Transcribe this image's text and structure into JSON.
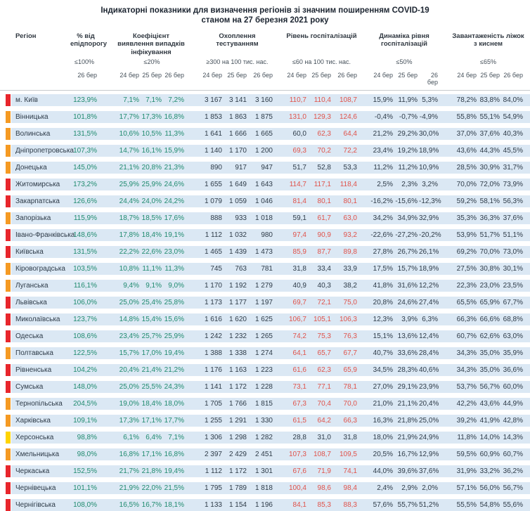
{
  "title_line1": "Індикаторні показники для визначення регіонів зі значним поширенням COVID-19",
  "title_line2": "станом на 27 березня 2021 року",
  "header": {
    "region_label": "Регіон",
    "groups": [
      {
        "name": "% від епідпорогу",
        "threshold": "≤100%",
        "dates": [
          "26 бер"
        ]
      },
      {
        "name": "Коефіцієнт виявлення випадків інфікування",
        "threshold": "≤20%",
        "dates": [
          "24 бер",
          "25 бер",
          "26 бер"
        ]
      },
      {
        "name": "Охоплення тестуванням",
        "threshold": "≥300 на 100 тис. нас.",
        "dates": [
          "24 бер",
          "25 бер",
          "26 бер"
        ]
      },
      {
        "name": "Рівень госпіталізацій",
        "threshold": "≤60 на 100 тис. нас.",
        "dates": [
          "24 бер",
          "25 бер",
          "26 бер"
        ]
      },
      {
        "name": "Динаміка рівня госпіталізацій",
        "threshold": "≤50%",
        "dates": [
          "24 бер",
          "25 бер",
          "26 бер"
        ]
      },
      {
        "name": "Завантаженість ліжок з киснем",
        "threshold": "≤65%",
        "dates": [
          "24 бер",
          "25 бер",
          "26 бер"
        ]
      }
    ]
  },
  "colors": {
    "row_bg": "#dbe8f4",
    "marker_red": "#e8262c",
    "marker_orange": "#f59a23",
    "marker_yellow": "#ffd400",
    "value_green": "#208b6f",
    "value_red": "#e0524a",
    "value_dark": "#2e3b48",
    "hosp_red_above": 60
  },
  "rows": [
    {
      "region": "м. Київ",
      "marker": "red",
      "epi": "123,9%",
      "detect": [
        "7,1%",
        "7,1%",
        "7,2%"
      ],
      "testing": [
        "3 167",
        "3 141",
        "3 160"
      ],
      "hosp": [
        "110,7",
        "110,4",
        "108,7"
      ],
      "dynamics": [
        "15,9%",
        "11,9%",
        "5,3%"
      ],
      "beds": [
        "78,2%",
        "83,8%",
        "84,0%"
      ]
    },
    {
      "region": "Вінницька",
      "marker": "orange",
      "epi": "101,8%",
      "detect": [
        "17,7%",
        "17,3%",
        "16,8%"
      ],
      "testing": [
        "1 853",
        "1 863",
        "1 875"
      ],
      "hosp": [
        "131,0",
        "129,3",
        "124,6"
      ],
      "dynamics": [
        "-0,4%",
        "-0,7%",
        "-4,9%"
      ],
      "beds": [
        "55,8%",
        "55,1%",
        "54,9%"
      ]
    },
    {
      "region": "Волинська",
      "marker": "orange",
      "epi": "131,5%",
      "detect": [
        "10,6%",
        "10,5%",
        "11,3%"
      ],
      "testing": [
        "1 641",
        "1 666",
        "1 665"
      ],
      "hosp": [
        "60,0",
        "62,3",
        "64,4"
      ],
      "dynamics": [
        "21,2%",
        "29,2%",
        "30,0%"
      ],
      "beds": [
        "37,0%",
        "37,6%",
        "40,3%"
      ]
    },
    {
      "region": "Дніпропетровська",
      "marker": "orange",
      "epi": "107,3%",
      "detect": [
        "14,7%",
        "16,1%",
        "15,9%"
      ],
      "testing": [
        "1 140",
        "1 170",
        "1 200"
      ],
      "hosp": [
        "69,3",
        "70,2",
        "72,2"
      ],
      "dynamics": [
        "23,4%",
        "19,2%",
        "18,9%"
      ],
      "beds": [
        "43,6%",
        "44,3%",
        "45,5%"
      ]
    },
    {
      "region": "Донецька",
      "marker": "orange",
      "epi": "145,0%",
      "detect": [
        "21,1%",
        "20,8%",
        "21,3%"
      ],
      "testing": [
        "890",
        "917",
        "947"
      ],
      "hosp": [
        "51,7",
        "52,8",
        "53,3"
      ],
      "dynamics": [
        "11,2%",
        "11,2%",
        "10,9%"
      ],
      "beds": [
        "28,5%",
        "30,9%",
        "31,7%"
      ]
    },
    {
      "region": "Житомирська",
      "marker": "red",
      "epi": "173,2%",
      "detect": [
        "25,9%",
        "25,9%",
        "24,6%"
      ],
      "testing": [
        "1 655",
        "1 649",
        "1 643"
      ],
      "hosp": [
        "114,7",
        "117,1",
        "118,4"
      ],
      "dynamics": [
        "2,5%",
        "2,3%",
        "3,2%"
      ],
      "beds": [
        "70,0%",
        "72,0%",
        "73,9%"
      ]
    },
    {
      "region": "Закарпатська",
      "marker": "red",
      "epi": "126,6%",
      "detect": [
        "24,4%",
        "24,0%",
        "24,2%"
      ],
      "testing": [
        "1 079",
        "1 059",
        "1 046"
      ],
      "hosp": [
        "81,4",
        "80,1",
        "80,1"
      ],
      "dynamics": [
        "-16,2%",
        "-15,6%",
        "-12,3%"
      ],
      "beds": [
        "59,2%",
        "58,1%",
        "56,3%"
      ]
    },
    {
      "region": "Запорізька",
      "marker": "orange",
      "epi": "115,9%",
      "detect": [
        "18,7%",
        "18,5%",
        "17,6%"
      ],
      "testing": [
        "888",
        "933",
        "1 018"
      ],
      "hosp": [
        "59,1",
        "61,7",
        "63,0"
      ],
      "dynamics": [
        "34,2%",
        "34,9%",
        "32,9%"
      ],
      "beds": [
        "35,3%",
        "36,3%",
        "37,6%"
      ]
    },
    {
      "region": "Івано-Франківська",
      "marker": "red",
      "epi": "148,6%",
      "detect": [
        "17,8%",
        "18,4%",
        "19,1%"
      ],
      "testing": [
        "1 112",
        "1 032",
        "980"
      ],
      "hosp": [
        "97,4",
        "90,9",
        "93,2"
      ],
      "dynamics": [
        "-22,6%",
        "-27,2%",
        "-20,2%"
      ],
      "beds": [
        "53,9%",
        "51,7%",
        "51,1%"
      ]
    },
    {
      "region": "Київська",
      "marker": "red",
      "epi": "131,5%",
      "detect": [
        "22,2%",
        "22,6%",
        "23,0%"
      ],
      "testing": [
        "1 465",
        "1 439",
        "1 473"
      ],
      "hosp": [
        "85,9",
        "87,7",
        "89,8"
      ],
      "dynamics": [
        "27,8%",
        "26,7%",
        "26,1%"
      ],
      "beds": [
        "69,2%",
        "70,0%",
        "73,0%"
      ]
    },
    {
      "region": "Кіровоградська",
      "marker": "orange",
      "epi": "103,5%",
      "detect": [
        "10,8%",
        "11,1%",
        "11,3%"
      ],
      "testing": [
        "745",
        "763",
        "781"
      ],
      "hosp": [
        "31,8",
        "33,4",
        "33,9"
      ],
      "dynamics": [
        "17,5%",
        "15,7%",
        "18,9%"
      ],
      "beds": [
        "27,5%",
        "30,8%",
        "30,1%"
      ]
    },
    {
      "region": "Луганська",
      "marker": "orange",
      "epi": "116,1%",
      "detect": [
        "9,4%",
        "9,1%",
        "9,0%"
      ],
      "testing": [
        "1 170",
        "1 192",
        "1 279"
      ],
      "hosp": [
        "40,9",
        "40,3",
        "38,2"
      ],
      "dynamics": [
        "41,8%",
        "31,6%",
        "12,2%"
      ],
      "beds": [
        "22,3%",
        "23,0%",
        "23,5%"
      ]
    },
    {
      "region": "Львівська",
      "marker": "red",
      "epi": "106,0%",
      "detect": [
        "25,0%",
        "25,4%",
        "25,8%"
      ],
      "testing": [
        "1 173",
        "1 177",
        "1 197"
      ],
      "hosp": [
        "69,7",
        "72,1",
        "75,0"
      ],
      "dynamics": [
        "20,8%",
        "24,6%",
        "27,4%"
      ],
      "beds": [
        "65,5%",
        "65,9%",
        "67,7%"
      ]
    },
    {
      "region": "Миколаївська",
      "marker": "red",
      "epi": "123,7%",
      "detect": [
        "14,8%",
        "15,4%",
        "15,6%"
      ],
      "testing": [
        "1 616",
        "1 620",
        "1 625"
      ],
      "hosp": [
        "106,7",
        "105,1",
        "106,3"
      ],
      "dynamics": [
        "12,3%",
        "3,9%",
        "6,3%"
      ],
      "beds": [
        "66,3%",
        "66,6%",
        "68,8%"
      ]
    },
    {
      "region": "Одеська",
      "marker": "red",
      "epi": "108,6%",
      "detect": [
        "23,4%",
        "25,7%",
        "25,9%"
      ],
      "testing": [
        "1 242",
        "1 232",
        "1 265"
      ],
      "hosp": [
        "74,2",
        "75,3",
        "76,3"
      ],
      "dynamics": [
        "15,1%",
        "13,6%",
        "12,4%"
      ],
      "beds": [
        "60,7%",
        "62,6%",
        "63,0%"
      ]
    },
    {
      "region": "Полтавська",
      "marker": "orange",
      "epi": "122,5%",
      "detect": [
        "15,7%",
        "17,0%",
        "19,4%"
      ],
      "testing": [
        "1 388",
        "1 338",
        "1 274"
      ],
      "hosp": [
        "64,1",
        "65,7",
        "67,7"
      ],
      "dynamics": [
        "40,7%",
        "33,6%",
        "28,4%"
      ],
      "beds": [
        "34,3%",
        "35,0%",
        "35,9%"
      ]
    },
    {
      "region": "Рівненська",
      "marker": "red",
      "epi": "104,2%",
      "detect": [
        "20,4%",
        "21,4%",
        "21,2%"
      ],
      "testing": [
        "1 176",
        "1 163",
        "1 223"
      ],
      "hosp": [
        "61,6",
        "62,3",
        "65,9"
      ],
      "dynamics": [
        "34,5%",
        "28,3%",
        "40,6%"
      ],
      "beds": [
        "34,3%",
        "35,0%",
        "36,6%"
      ]
    },
    {
      "region": "Сумська",
      "marker": "red",
      "epi": "148,0%",
      "detect": [
        "25,0%",
        "25,5%",
        "24,3%"
      ],
      "testing": [
        "1 141",
        "1 172",
        "1 228"
      ],
      "hosp": [
        "73,1",
        "77,1",
        "78,1"
      ],
      "dynamics": [
        "27,0%",
        "29,1%",
        "23,9%"
      ],
      "beds": [
        "53,7%",
        "56,7%",
        "60,0%"
      ]
    },
    {
      "region": "Тернопільська",
      "marker": "orange",
      "epi": "204,5%",
      "detect": [
        "19,0%",
        "18,4%",
        "18,0%"
      ],
      "testing": [
        "1 705",
        "1 766",
        "1 815"
      ],
      "hosp": [
        "67,3",
        "70,4",
        "70,0"
      ],
      "dynamics": [
        "21,0%",
        "21,1%",
        "20,4%"
      ],
      "beds": [
        "42,2%",
        "43,6%",
        "44,9%"
      ]
    },
    {
      "region": "Харківська",
      "marker": "orange",
      "epi": "109,1%",
      "detect": [
        "17,3%",
        "17,1%",
        "17,7%"
      ],
      "testing": [
        "1 255",
        "1 291",
        "1 330"
      ],
      "hosp": [
        "61,5",
        "64,2",
        "66,3"
      ],
      "dynamics": [
        "16,3%",
        "21,8%",
        "25,0%"
      ],
      "beds": [
        "39,2%",
        "41,9%",
        "42,8%"
      ]
    },
    {
      "region": "Херсонська",
      "marker": "yellow",
      "epi": "98,8%",
      "detect": [
        "6,1%",
        "6,4%",
        "7,1%"
      ],
      "testing": [
        "1 306",
        "1 298",
        "1 282"
      ],
      "hosp": [
        "28,8",
        "31,0",
        "31,8"
      ],
      "dynamics": [
        "18,0%",
        "21,9%",
        "24,9%"
      ],
      "beds": [
        "11,8%",
        "14,0%",
        "14,3%"
      ]
    },
    {
      "region": "Хмельницька",
      "marker": "orange",
      "epi": "98,0%",
      "detect": [
        "16,8%",
        "17,1%",
        "16,8%"
      ],
      "testing": [
        "2 397",
        "2 429",
        "2 451"
      ],
      "hosp": [
        "107,3",
        "108,7",
        "109,5"
      ],
      "dynamics": [
        "20,5%",
        "16,7%",
        "12,9%"
      ],
      "beds": [
        "59,5%",
        "60,9%",
        "60,7%"
      ]
    },
    {
      "region": "Черкаська",
      "marker": "red",
      "epi": "152,5%",
      "detect": [
        "21,7%",
        "21,8%",
        "19,4%"
      ],
      "testing": [
        "1 112",
        "1 172",
        "1 301"
      ],
      "hosp": [
        "67,6",
        "71,9",
        "74,1"
      ],
      "dynamics": [
        "44,0%",
        "39,6%",
        "37,6%"
      ],
      "beds": [
        "31,9%",
        "33,2%",
        "36,2%"
      ]
    },
    {
      "region": "Чернівецька",
      "marker": "red",
      "epi": "101,1%",
      "detect": [
        "21,9%",
        "22,0%",
        "21,5%"
      ],
      "testing": [
        "1 795",
        "1 789",
        "1 818"
      ],
      "hosp": [
        "100,4",
        "98,6",
        "98,4"
      ],
      "dynamics": [
        "2,4%",
        "2,9%",
        "2,0%"
      ],
      "beds": [
        "57,1%",
        "56,0%",
        "56,7%"
      ]
    },
    {
      "region": "Чернігівська",
      "marker": "red",
      "epi": "108,0%",
      "detect": [
        "16,5%",
        "16,7%",
        "18,1%"
      ],
      "testing": [
        "1 133",
        "1 154",
        "1 196"
      ],
      "hosp": [
        "84,1",
        "85,3",
        "88,3"
      ],
      "dynamics": [
        "57,6%",
        "55,7%",
        "51,2%"
      ],
      "beds": [
        "55,5%",
        "54,8%",
        "55,6%"
      ]
    }
  ]
}
